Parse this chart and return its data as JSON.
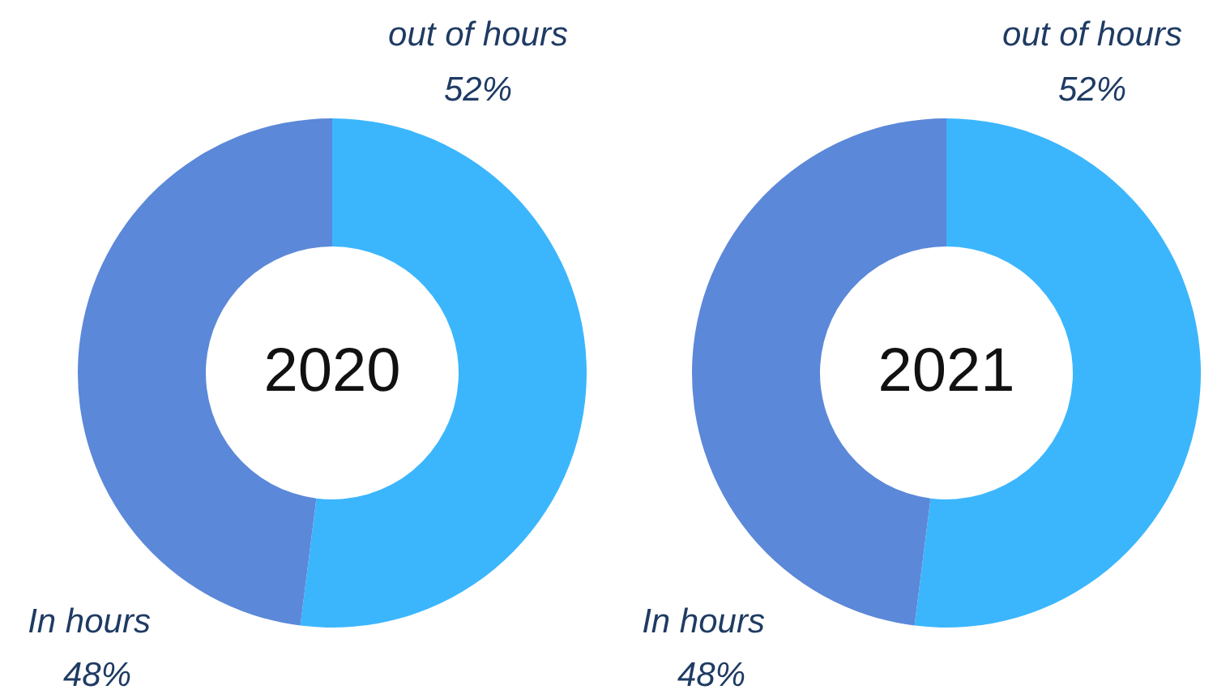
{
  "chart_data": [
    {
      "type": "donut",
      "title": "2020",
      "categories": [
        "out of hours",
        "In hours"
      ],
      "values": [
        52,
        48
      ],
      "colors": [
        "#3bb6fd",
        "#5b88d8"
      ],
      "value_labels": [
        "52%",
        "48%"
      ]
    },
    {
      "type": "donut",
      "title": "2021",
      "categories": [
        "out of hours",
        "In hours"
      ],
      "values": [
        52,
        48
      ],
      "colors": [
        "#3bb6fd",
        "#5b88d8"
      ],
      "value_labels": [
        "52%",
        "48%"
      ]
    }
  ]
}
